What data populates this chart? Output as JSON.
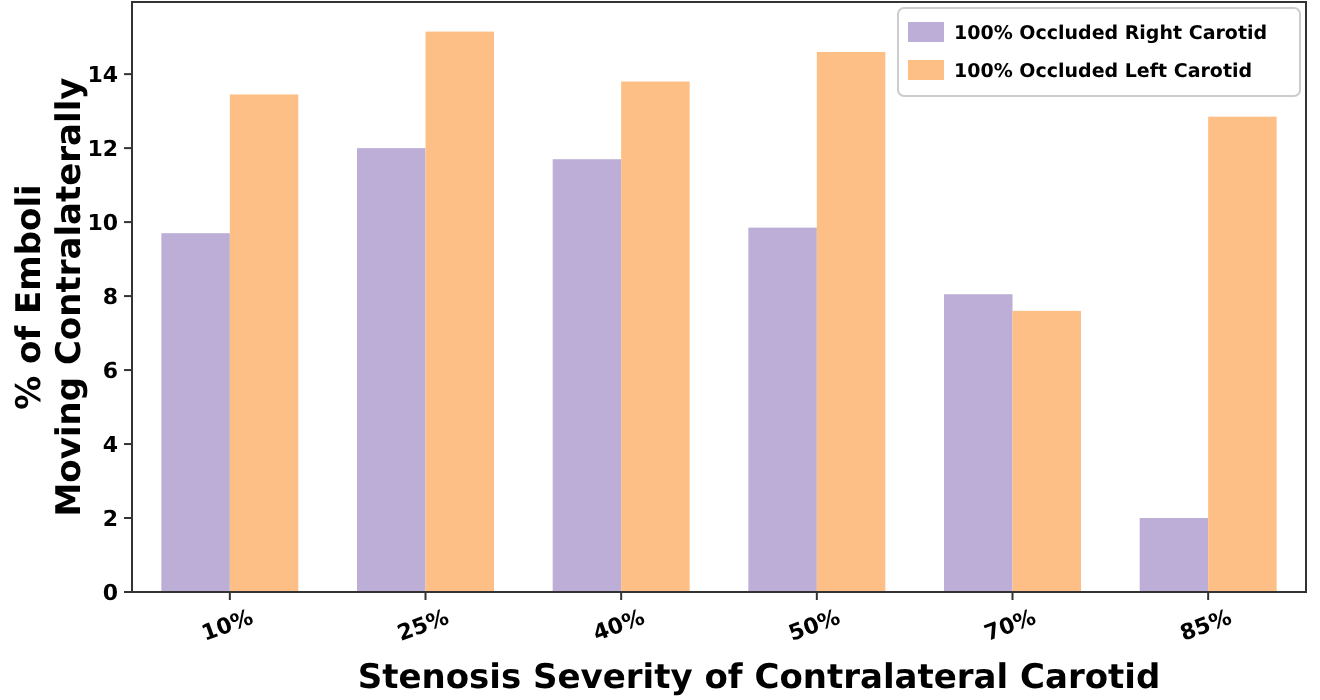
{
  "chart_data": {
    "type": "bar",
    "xlabel": "Stenosis Severity of Contralateral Carotid",
    "ylabel": "% of Emboli\nMoving Contralaterally",
    "categories": [
      "10%",
      "25%",
      "40%",
      "50%",
      "70%",
      "85%"
    ],
    "series": [
      {
        "name": "100% Occluded Right Carotid",
        "color": "#bcaed6",
        "values": [
          9.7,
          12.0,
          11.7,
          9.85,
          8.05,
          2.0
        ]
      },
      {
        "name": "100% Occluded Left Carotid",
        "color": "#fdbf85",
        "values": [
          13.45,
          15.15,
          13.8,
          14.6,
          7.6,
          12.85
        ]
      }
    ],
    "ylim": [
      0,
      15.95
    ],
    "yticks": [
      0,
      2,
      4,
      6,
      8,
      10,
      12,
      14
    ],
    "grid": false,
    "legend": "top right"
  }
}
